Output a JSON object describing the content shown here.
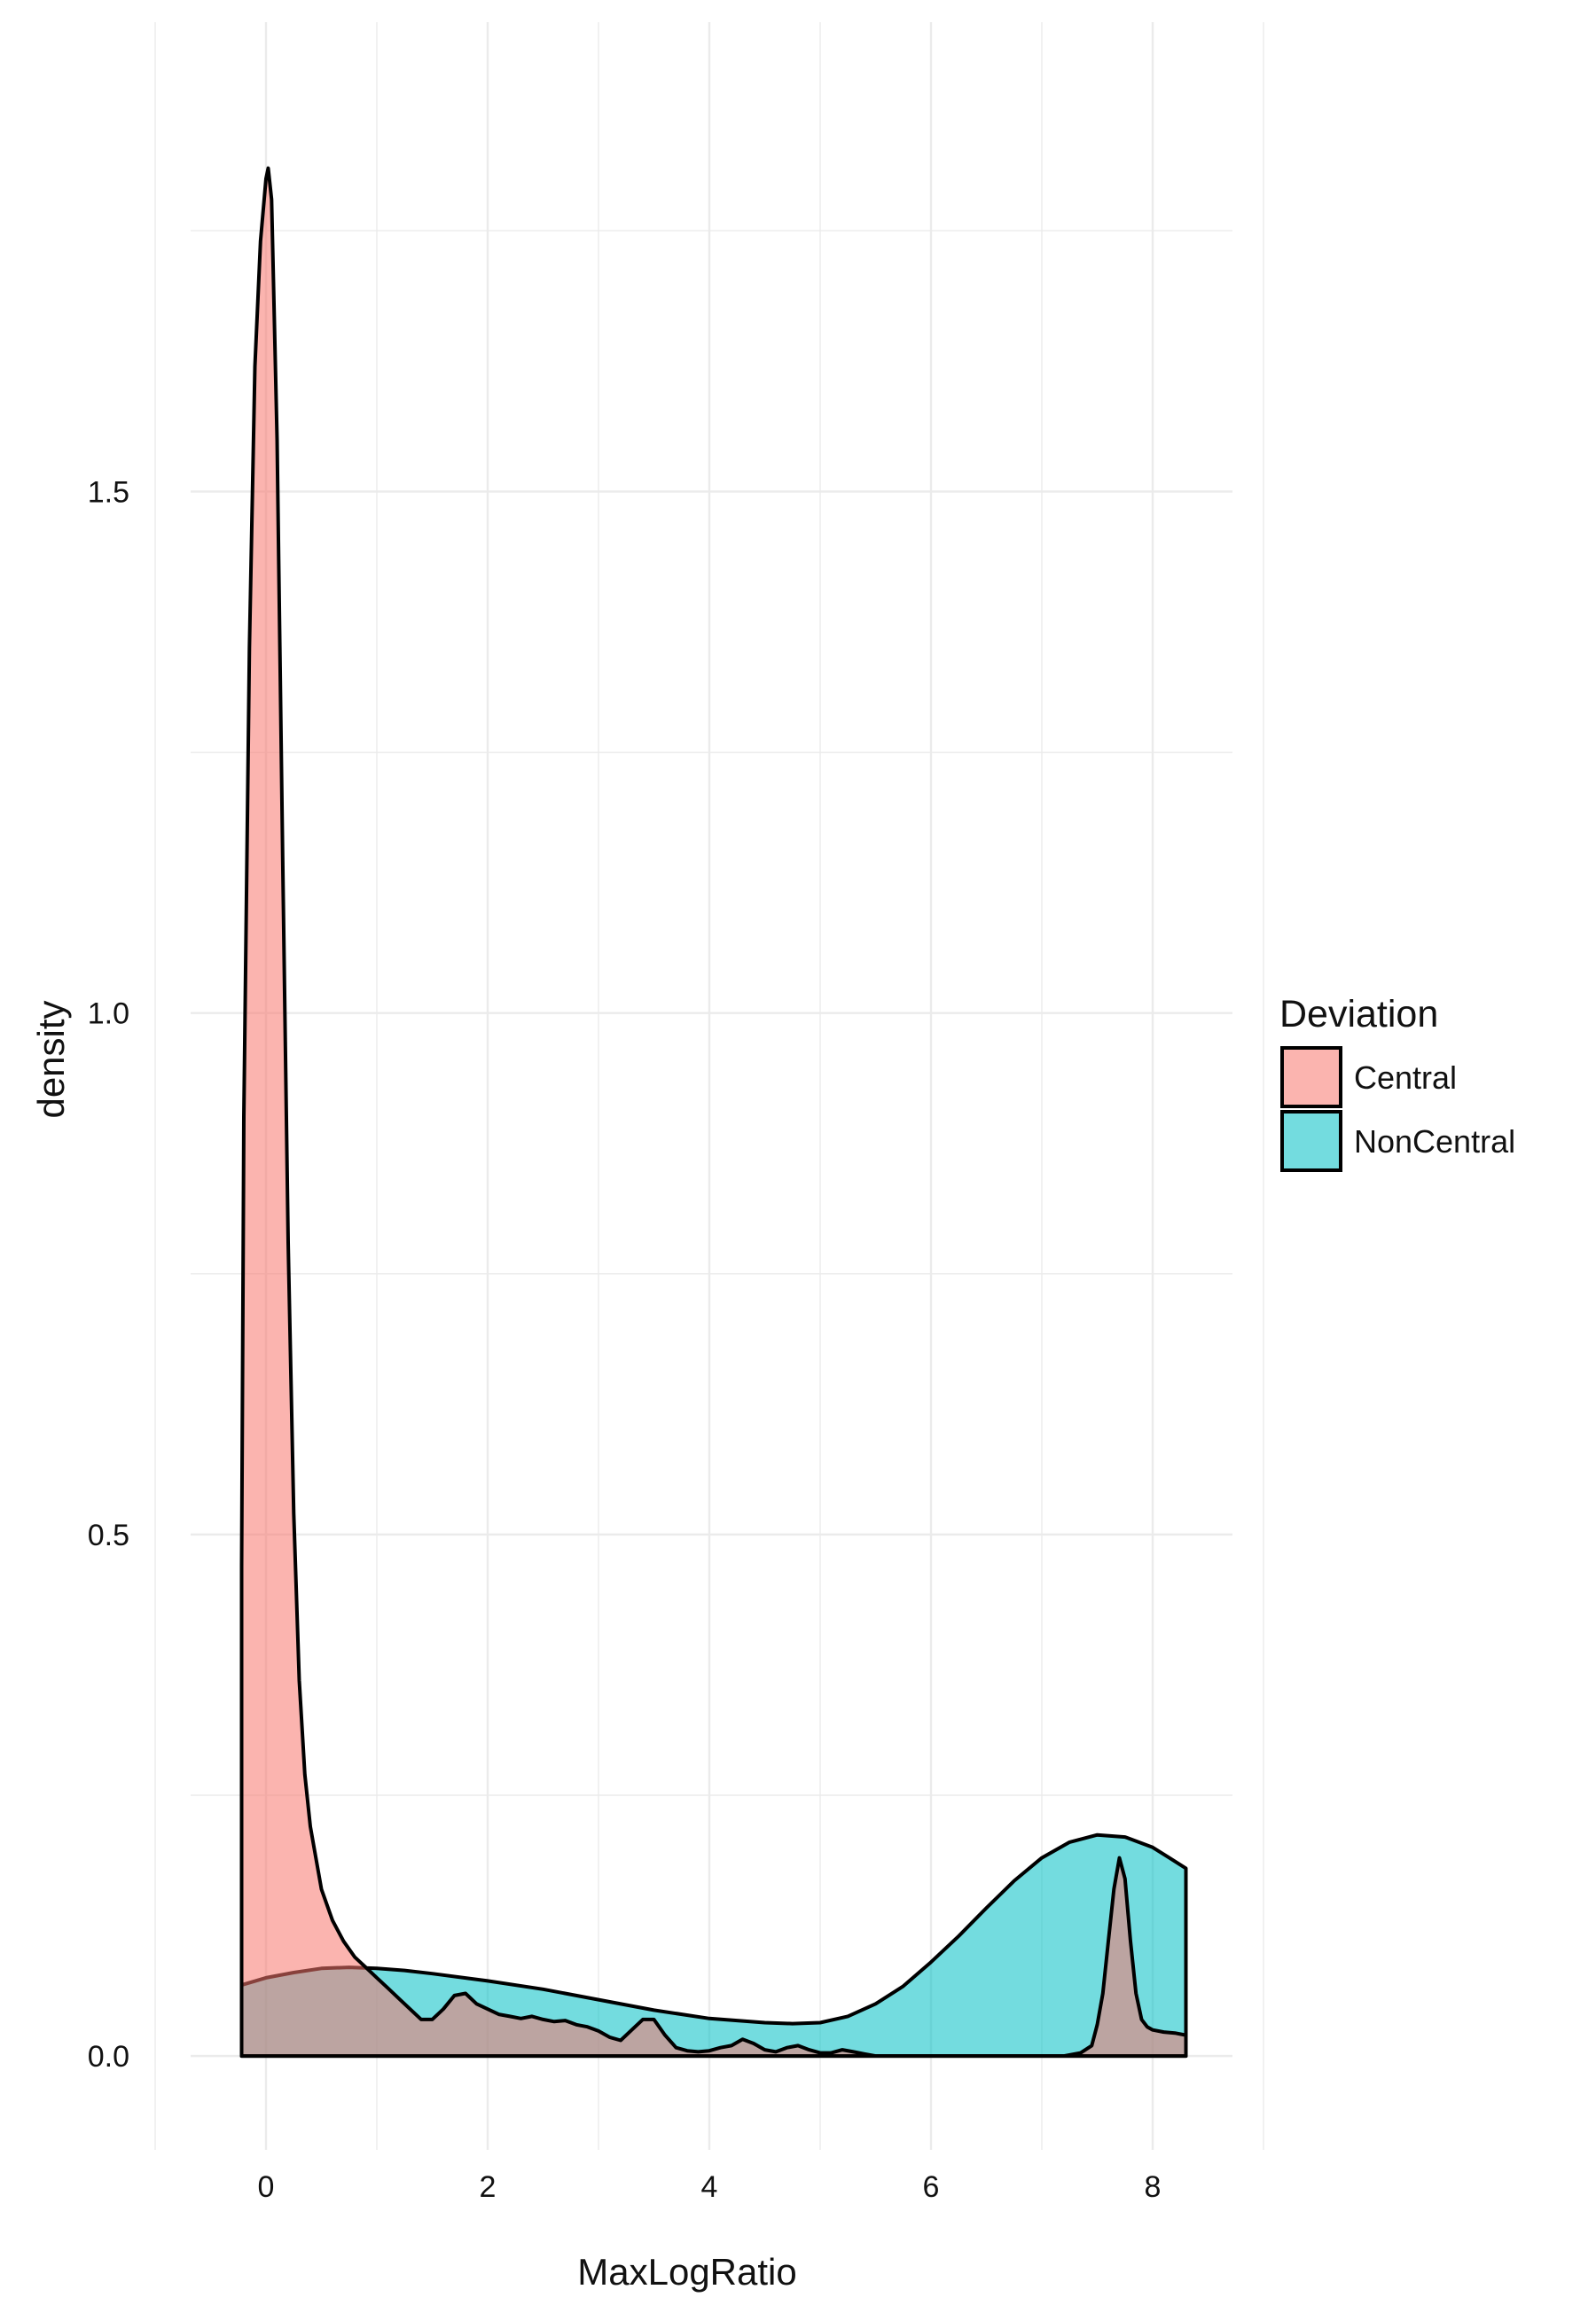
{
  "chart_data": {
    "type": "area",
    "xlabel": "MaxLogRatio",
    "ylabel": "density",
    "xlim": [
      -0.68,
      8.72
    ],
    "ylim": [
      -0.09,
      1.95
    ],
    "x_ticks": [
      0,
      2,
      4,
      6,
      8
    ],
    "x_tick_labels": [
      "0",
      "2",
      "4",
      "6",
      "8"
    ],
    "y_ticks": [
      0.0,
      0.5,
      1.0,
      1.5
    ],
    "y_tick_labels": [
      "0.0",
      "0.5",
      "1.0",
      "1.5"
    ],
    "grid": true,
    "legend": {
      "title": "Deviation",
      "placement": "right",
      "entries": [
        "Central",
        "NonCentral"
      ]
    },
    "colors": {
      "Central": "#F8766D",
      "NonCentral": "#00BFC4",
      "outline": "#000000",
      "grid": "#EBEBEB"
    },
    "series": [
      {
        "name": "Central",
        "x": [
          -0.22,
          -0.2,
          -0.15,
          -0.1,
          -0.05,
          0.0,
          0.02,
          0.05,
          0.1,
          0.15,
          0.2,
          0.25,
          0.3,
          0.35,
          0.4,
          0.5,
          0.6,
          0.7,
          0.8,
          0.9,
          1.0,
          1.1,
          1.2,
          1.3,
          1.4,
          1.5,
          1.6,
          1.7,
          1.8,
          1.9,
          2.0,
          2.1,
          2.2,
          2.3,
          2.4,
          2.5,
          2.6,
          2.7,
          2.8,
          2.9,
          3.0,
          3.1,
          3.2,
          3.3,
          3.4,
          3.5,
          3.6,
          3.7,
          3.8,
          3.9,
          4.0,
          4.1,
          4.2,
          4.3,
          4.4,
          4.5,
          4.6,
          4.7,
          4.8,
          4.9,
          5.0,
          5.1,
          5.2,
          5.3,
          5.4,
          5.5,
          6.0,
          6.5,
          7.0,
          7.2,
          7.35,
          7.45,
          7.5,
          7.55,
          7.6,
          7.65,
          7.7,
          7.75,
          7.8,
          7.85,
          7.9,
          7.95,
          8.0,
          8.1,
          8.2,
          8.3
        ],
        "y": [
          0.47,
          0.9,
          1.35,
          1.62,
          1.74,
          1.8,
          1.81,
          1.78,
          1.55,
          1.15,
          0.78,
          0.52,
          0.36,
          0.27,
          0.22,
          0.16,
          0.13,
          0.11,
          0.095,
          0.085,
          0.075,
          0.065,
          0.055,
          0.045,
          0.035,
          0.035,
          0.045,
          0.058,
          0.06,
          0.05,
          0.045,
          0.04,
          0.038,
          0.036,
          0.038,
          0.035,
          0.033,
          0.034,
          0.03,
          0.028,
          0.024,
          0.018,
          0.015,
          0.025,
          0.035,
          0.035,
          0.02,
          0.008,
          0.005,
          0.004,
          0.005,
          0.008,
          0.01,
          0.016,
          0.012,
          0.006,
          0.004,
          0.008,
          0.01,
          0.006,
          0.003,
          0.003,
          0.006,
          0.004,
          0.002,
          0.0,
          0.0,
          0.0,
          0.0,
          0.0,
          0.003,
          0.01,
          0.03,
          0.06,
          0.11,
          0.16,
          0.19,
          0.17,
          0.11,
          0.06,
          0.035,
          0.028,
          0.025,
          0.023,
          0.022,
          0.02
        ]
      },
      {
        "name": "NonCentral",
        "x": [
          -0.22,
          0.0,
          0.25,
          0.5,
          0.75,
          1.0,
          1.25,
          1.5,
          2.0,
          2.5,
          3.0,
          3.5,
          4.0,
          4.5,
          4.75,
          5.0,
          5.25,
          5.5,
          5.75,
          6.0,
          6.25,
          6.5,
          6.75,
          7.0,
          7.25,
          7.5,
          7.75,
          8.0,
          8.15,
          8.3
        ],
        "y": [
          0.068,
          0.075,
          0.08,
          0.084,
          0.085,
          0.084,
          0.082,
          0.079,
          0.072,
          0.064,
          0.054,
          0.044,
          0.036,
          0.032,
          0.031,
          0.032,
          0.038,
          0.05,
          0.067,
          0.09,
          0.115,
          0.142,
          0.168,
          0.19,
          0.205,
          0.212,
          0.21,
          0.2,
          0.19,
          0.18
        ]
      }
    ]
  }
}
